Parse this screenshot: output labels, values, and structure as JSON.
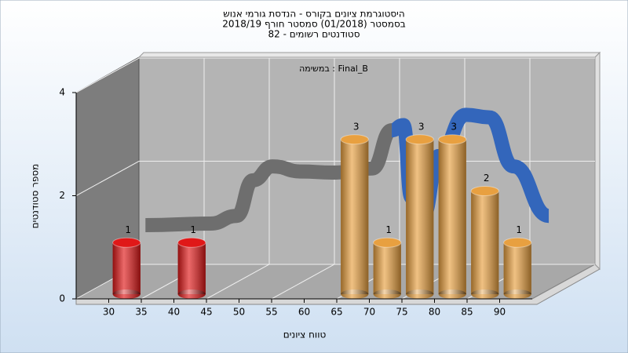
{
  "chart_data": {
    "type": "bar",
    "title": [
      "היסטוגרמת ציונים בקורס - הנדסת גורמי אנוש",
      "בסמסטר  (01/2018)  סמסטר חורף 2018/19",
      "סטודנטים רשומים - 82"
    ],
    "annotation": "במשימה : Final_B",
    "xlabel": "טווח ציונים",
    "ylabel": "מספר סטודנטים",
    "xlim": [
      25,
      95
    ],
    "xticks": [
      30,
      35,
      40,
      45,
      50,
      55,
      60,
      65,
      70,
      75,
      80,
      85,
      90
    ],
    "ylim": [
      0,
      4
    ],
    "yticks": [
      0,
      2,
      4
    ],
    "grid": true,
    "series": [
      {
        "x": [
          30,
          40,
          65,
          70,
          75,
          80,
          85,
          90
        ],
        "values": [
          1,
          1,
          3,
          1,
          3,
          3,
          2,
          1
        ],
        "colors": [
          "#e01818",
          "#e01818",
          "#e8a040",
          "#e8a040",
          "#e8a040",
          "#e8a040",
          "#e8a040",
          "#e8a040"
        ]
      }
    ],
    "curves": [
      {
        "type": "line",
        "color": "#6e6e6e",
        "x": [
          26,
          36,
          40,
          42.5,
          45.5,
          49.9,
          54.7,
          60.8,
          63.8
        ],
        "values": [
          0.76,
          0.79,
          0.94,
          1.63,
          1.9,
          1.8,
          1.78,
          1.86,
          2.6
        ]
      },
      {
        "type": "line",
        "color": "#3366bb",
        "x": [
          63.8,
          65.6,
          66.8,
          68.6,
          71,
          75.2,
          78.8,
          82.5,
          87.9
        ],
        "values": [
          2.6,
          2.7,
          1.3,
          0.94,
          2.1,
          2.9,
          2.85,
          1.9,
          0.94
        ]
      }
    ]
  }
}
